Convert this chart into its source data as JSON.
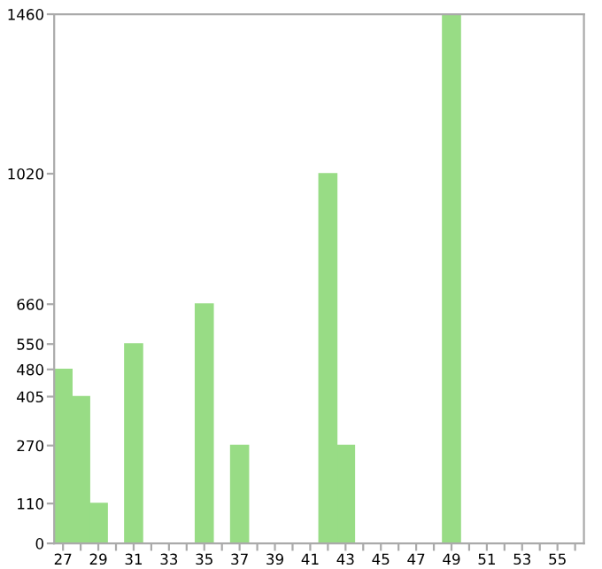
{
  "chart_data": {
    "type": "bar",
    "categories": [
      "27",
      null,
      "29",
      null,
      "31",
      null,
      "33",
      null,
      "35",
      null,
      "37",
      null,
      "39",
      null,
      "41",
      null,
      "43",
      null,
      "45",
      null,
      "47",
      null,
      "49",
      null,
      "51",
      null,
      "53",
      null,
      "55",
      null
    ],
    "values": [
      480,
      405,
      110,
      0,
      550,
      0,
      0,
      0,
      660,
      0,
      270,
      0,
      0,
      0,
      0,
      1020,
      270,
      0,
      0,
      0,
      0,
      0,
      1460,
      0,
      0,
      0,
      0,
      0,
      0,
      0
    ],
    "color": "#98dc85",
    "ylim": [
      0,
      1460
    ],
    "yticks": [
      0,
      110,
      270,
      405,
      480,
      550,
      660,
      1020,
      1460
    ],
    "grid": false
  }
}
